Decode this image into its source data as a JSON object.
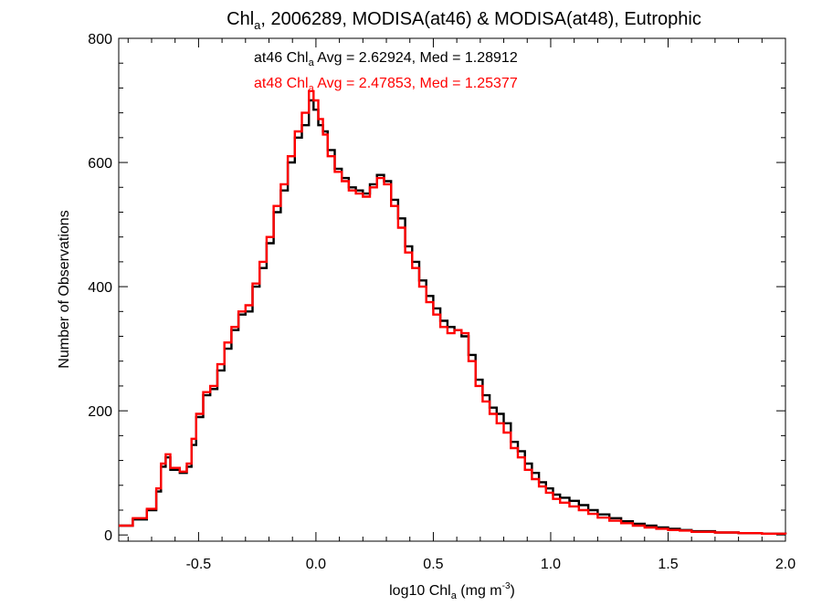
{
  "chart_data": {
    "type": "line",
    "title": {
      "prefix": "Chl",
      "sub": "a",
      "suffix": ", 2006289, MODISA(at46) & MODISA(at48), Eutrophic"
    },
    "xlabel": {
      "prefix": "log10 Chl",
      "sub": "a",
      "mid": " (mg m",
      "sup": "-3",
      "suffix": ")"
    },
    "ylabel": "Number of Observations",
    "xlim": [
      -0.84,
      2.0
    ],
    "ylim": [
      -10,
      800
    ],
    "x_ticks": [
      {
        "value": -0.5,
        "label": "-0.5"
      },
      {
        "value": 0.0,
        "label": "0.0"
      },
      {
        "value": 0.5,
        "label": "0.5"
      },
      {
        "value": 1.0,
        "label": "1.0"
      },
      {
        "value": 1.5,
        "label": "1.5"
      },
      {
        "value": 2.0,
        "label": "2.0"
      }
    ],
    "y_ticks": [
      {
        "value": 0,
        "label": "0"
      },
      {
        "value": 200,
        "label": "200"
      },
      {
        "value": 400,
        "label": "400"
      },
      {
        "value": 600,
        "label": "600"
      },
      {
        "value": 800,
        "label": "800"
      }
    ],
    "annotations": [
      {
        "prefix": "at46 Chl",
        "sub": "a",
        "suffix": " Avg = 2.62924, Med = 1.28912",
        "color": "#000000"
      },
      {
        "prefix": "at48 Chl",
        "sub": "a",
        "suffix": " Avg = 2.47853, Med = 1.25377",
        "color": "#ff0000"
      }
    ],
    "series": [
      {
        "color": "#000000",
        "points": [
          [
            -0.84,
            15
          ],
          [
            -0.78,
            25
          ],
          [
            -0.72,
            40
          ],
          [
            -0.68,
            70
          ],
          [
            -0.66,
            110
          ],
          [
            -0.64,
            125
          ],
          [
            -0.62,
            105
          ],
          [
            -0.58,
            100
          ],
          [
            -0.55,
            110
          ],
          [
            -0.53,
            145
          ],
          [
            -0.51,
            190
          ],
          [
            -0.48,
            225
          ],
          [
            -0.45,
            235
          ],
          [
            -0.42,
            265
          ],
          [
            -0.39,
            300
          ],
          [
            -0.36,
            330
          ],
          [
            -0.33,
            355
          ],
          [
            -0.3,
            360
          ],
          [
            -0.27,
            400
          ],
          [
            -0.24,
            430
          ],
          [
            -0.21,
            470
          ],
          [
            -0.18,
            520
          ],
          [
            -0.15,
            555
          ],
          [
            -0.12,
            600
          ],
          [
            -0.09,
            640
          ],
          [
            -0.06,
            660
          ],
          [
            -0.03,
            700
          ],
          [
            -0.01,
            685
          ],
          [
            0.01,
            660
          ],
          [
            0.03,
            650
          ],
          [
            0.05,
            620
          ],
          [
            0.08,
            590
          ],
          [
            0.11,
            575
          ],
          [
            0.14,
            560
          ],
          [
            0.17,
            555
          ],
          [
            0.2,
            550
          ],
          [
            0.23,
            565
          ],
          [
            0.26,
            580
          ],
          [
            0.29,
            570
          ],
          [
            0.32,
            540
          ],
          [
            0.35,
            510
          ],
          [
            0.38,
            465
          ],
          [
            0.41,
            440
          ],
          [
            0.44,
            410
          ],
          [
            0.47,
            385
          ],
          [
            0.5,
            365
          ],
          [
            0.53,
            345
          ],
          [
            0.56,
            335
          ],
          [
            0.59,
            330
          ],
          [
            0.62,
            320
          ],
          [
            0.65,
            290
          ],
          [
            0.68,
            250
          ],
          [
            0.71,
            225
          ],
          [
            0.74,
            205
          ],
          [
            0.77,
            195
          ],
          [
            0.8,
            180
          ],
          [
            0.83,
            150
          ],
          [
            0.86,
            135
          ],
          [
            0.89,
            115
          ],
          [
            0.92,
            100
          ],
          [
            0.95,
            85
          ],
          [
            0.98,
            75
          ],
          [
            1.01,
            65
          ],
          [
            1.04,
            60
          ],
          [
            1.08,
            55
          ],
          [
            1.12,
            48
          ],
          [
            1.16,
            40
          ],
          [
            1.2,
            33
          ],
          [
            1.25,
            27
          ],
          [
            1.3,
            22
          ],
          [
            1.35,
            18
          ],
          [
            1.4,
            15
          ],
          [
            1.45,
            12
          ],
          [
            1.5,
            10
          ],
          [
            1.55,
            8
          ],
          [
            1.6,
            6
          ],
          [
            1.7,
            4
          ],
          [
            1.8,
            3
          ],
          [
            1.9,
            2
          ],
          [
            2.0,
            1
          ]
        ]
      },
      {
        "color": "#ff0000",
        "points": [
          [
            -0.84,
            15
          ],
          [
            -0.78,
            27
          ],
          [
            -0.72,
            42
          ],
          [
            -0.68,
            75
          ],
          [
            -0.66,
            115
          ],
          [
            -0.64,
            130
          ],
          [
            -0.62,
            108
          ],
          [
            -0.58,
            102
          ],
          [
            -0.55,
            115
          ],
          [
            -0.53,
            155
          ],
          [
            -0.51,
            195
          ],
          [
            -0.48,
            230
          ],
          [
            -0.45,
            240
          ],
          [
            -0.42,
            275
          ],
          [
            -0.39,
            310
          ],
          [
            -0.36,
            335
          ],
          [
            -0.33,
            360
          ],
          [
            -0.3,
            370
          ],
          [
            -0.27,
            405
          ],
          [
            -0.24,
            440
          ],
          [
            -0.21,
            480
          ],
          [
            -0.18,
            530
          ],
          [
            -0.15,
            565
          ],
          [
            -0.12,
            610
          ],
          [
            -0.09,
            650
          ],
          [
            -0.06,
            680
          ],
          [
            -0.03,
            715
          ],
          [
            -0.01,
            700
          ],
          [
            0.01,
            670
          ],
          [
            0.03,
            645
          ],
          [
            0.05,
            610
          ],
          [
            0.08,
            585
          ],
          [
            0.11,
            570
          ],
          [
            0.14,
            555
          ],
          [
            0.17,
            550
          ],
          [
            0.2,
            545
          ],
          [
            0.23,
            560
          ],
          [
            0.26,
            575
          ],
          [
            0.29,
            565
          ],
          [
            0.32,
            530
          ],
          [
            0.35,
            495
          ],
          [
            0.38,
            455
          ],
          [
            0.41,
            430
          ],
          [
            0.44,
            400
          ],
          [
            0.47,
            375
          ],
          [
            0.5,
            355
          ],
          [
            0.53,
            335
          ],
          [
            0.56,
            325
          ],
          [
            0.59,
            330
          ],
          [
            0.62,
            325
          ],
          [
            0.65,
            280
          ],
          [
            0.68,
            240
          ],
          [
            0.71,
            215
          ],
          [
            0.74,
            195
          ],
          [
            0.77,
            180
          ],
          [
            0.8,
            165
          ],
          [
            0.83,
            140
          ],
          [
            0.86,
            125
          ],
          [
            0.89,
            105
          ],
          [
            0.92,
            90
          ],
          [
            0.95,
            78
          ],
          [
            0.98,
            68
          ],
          [
            1.01,
            58
          ],
          [
            1.04,
            52
          ],
          [
            1.08,
            46
          ],
          [
            1.12,
            40
          ],
          [
            1.16,
            34
          ],
          [
            1.2,
            28
          ],
          [
            1.25,
            23
          ],
          [
            1.3,
            19
          ],
          [
            1.35,
            15
          ],
          [
            1.4,
            12
          ],
          [
            1.45,
            10
          ],
          [
            1.5,
            8
          ],
          [
            1.55,
            7
          ],
          [
            1.6,
            5
          ],
          [
            1.7,
            4
          ],
          [
            1.8,
            3
          ],
          [
            1.9,
            2
          ],
          [
            2.0,
            1
          ]
        ]
      }
    ]
  }
}
